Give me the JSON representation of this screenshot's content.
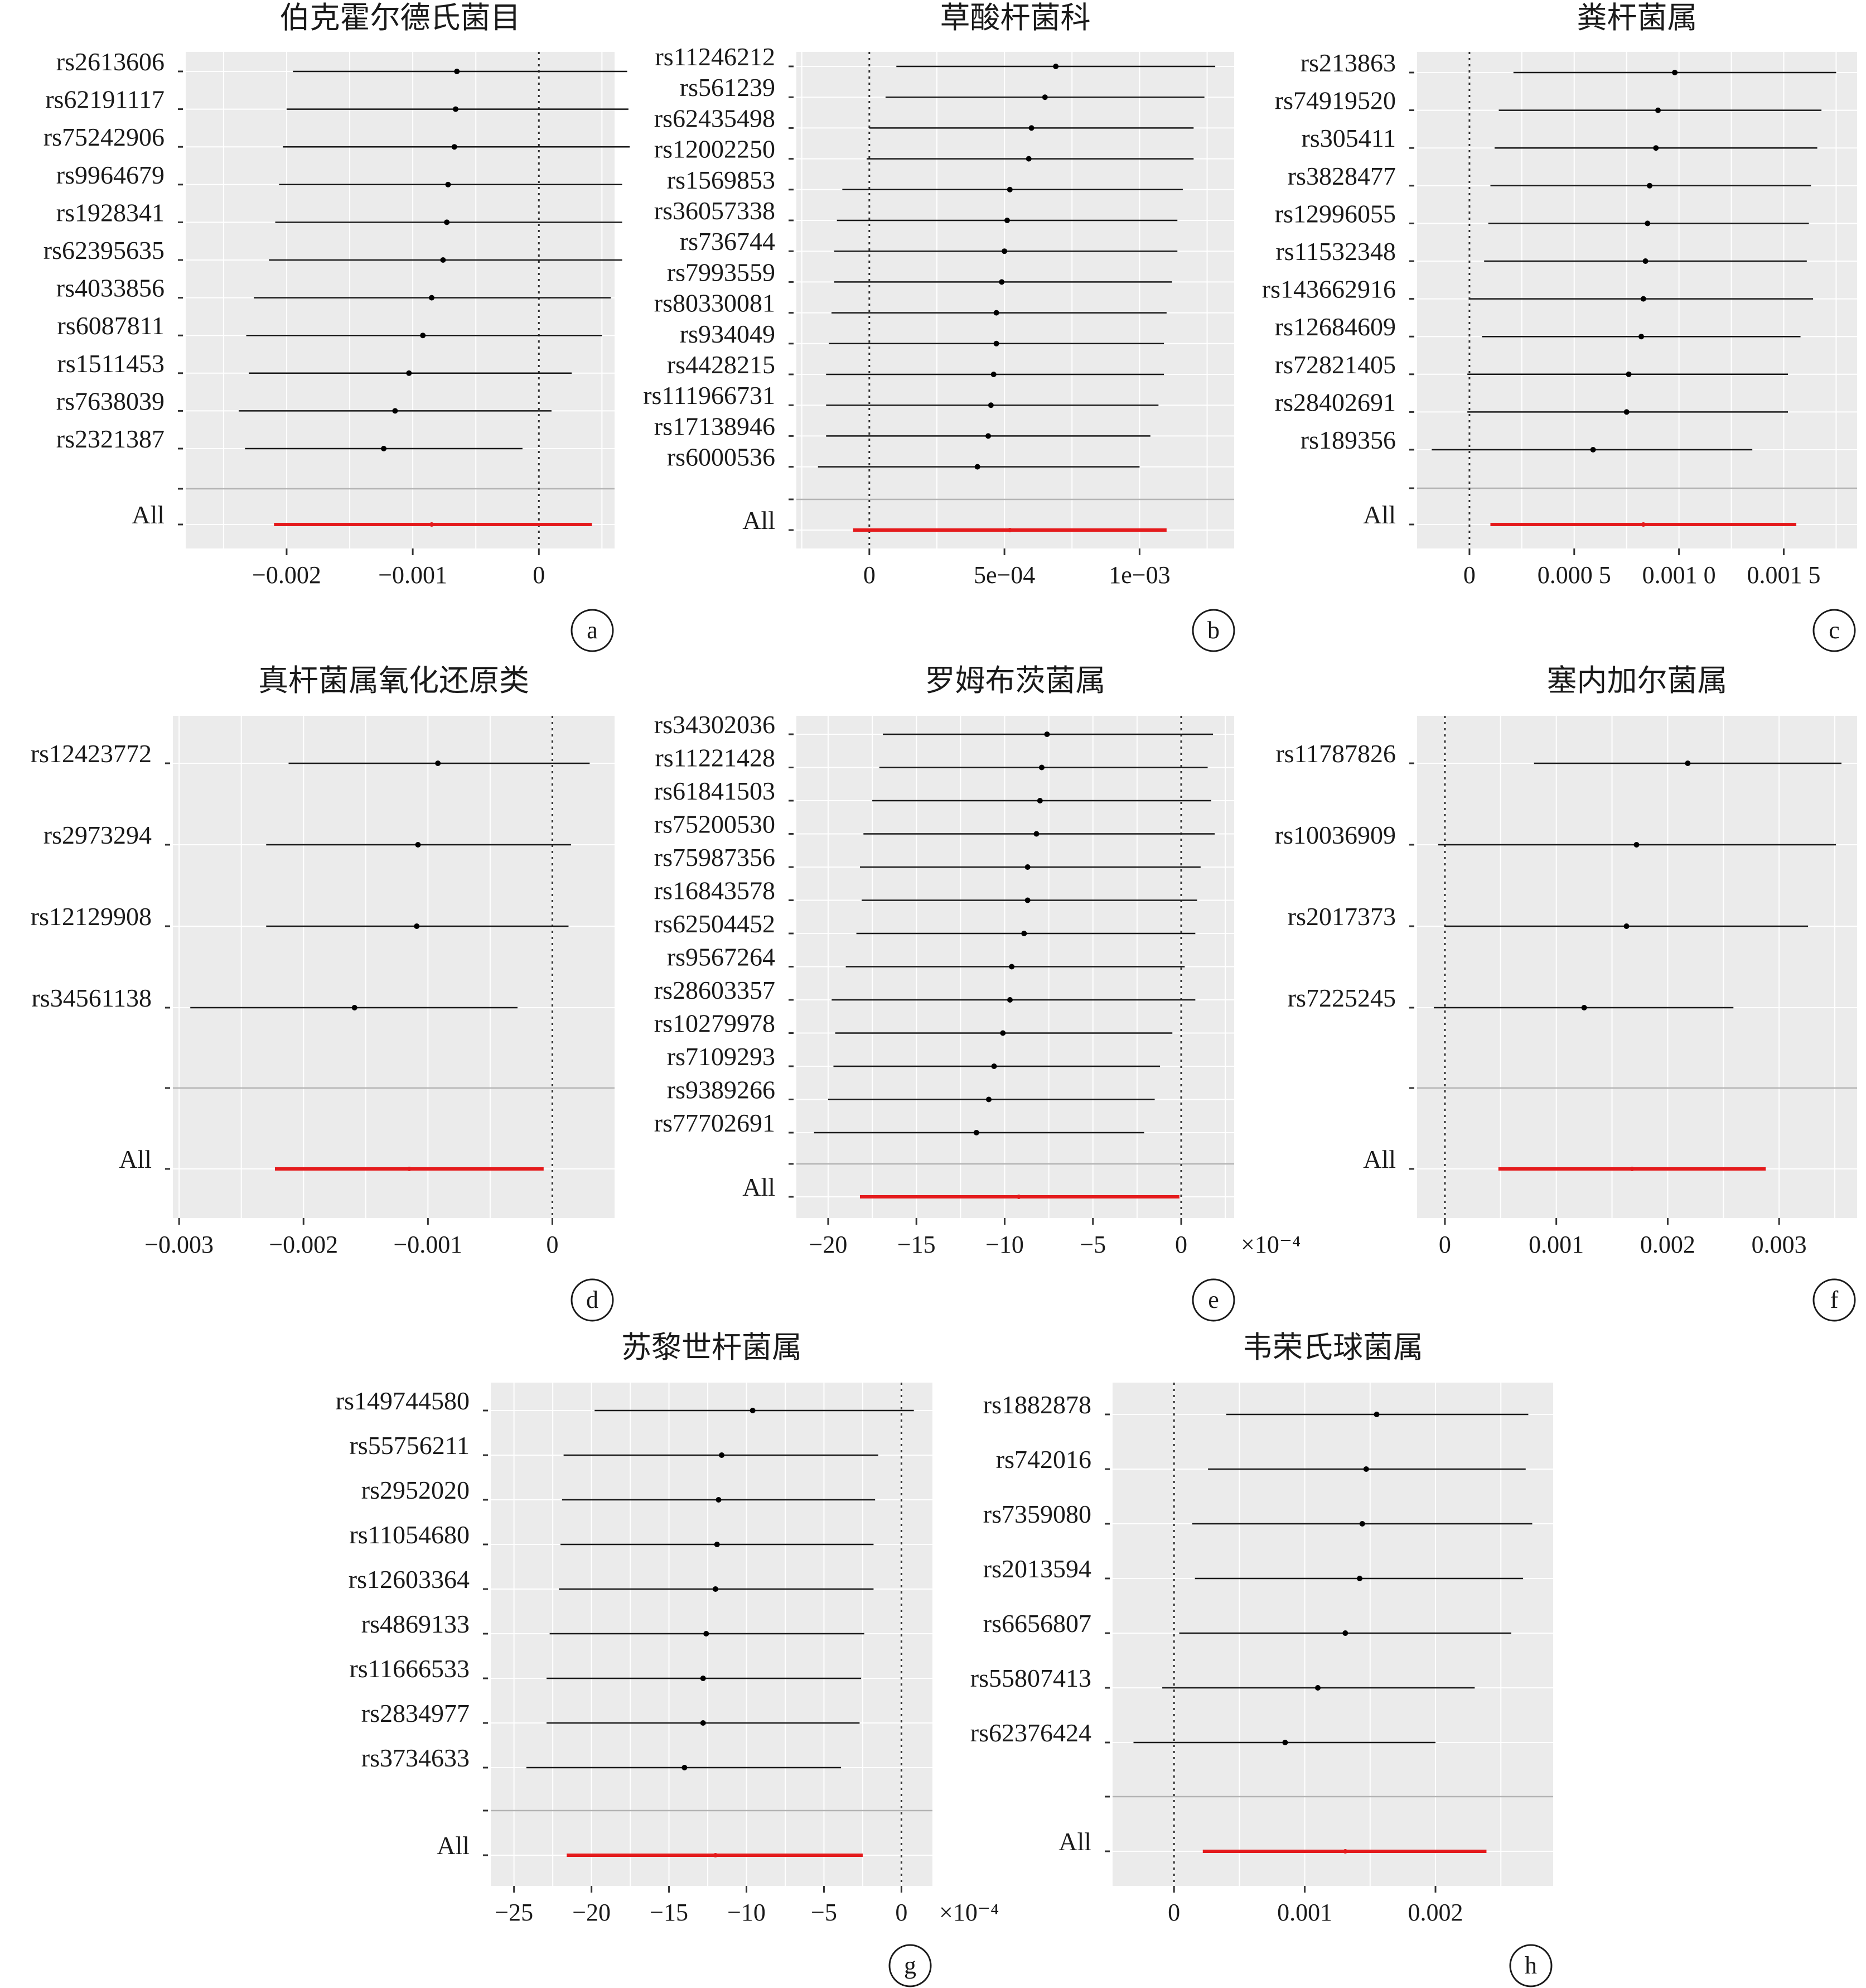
{
  "chart_data": [
    {
      "type": "forest",
      "panel": "a",
      "title": "伯克霍尔德氏菌目",
      "xlim": [
        -0.0028,
        0.0006
      ],
      "ticks": [
        {
          "v": -0.002,
          "label": "−0.002"
        },
        {
          "v": -0.001,
          "label": "−0.001"
        },
        {
          "v": 0,
          "label": "0"
        }
      ],
      "multiplier": "",
      "rows": [
        {
          "label": "rs2613606",
          "est": -0.00065,
          "lo": -0.00195,
          "hi": 0.0007
        },
        {
          "label": "rs62191117",
          "est": -0.00066,
          "lo": -0.002,
          "hi": 0.00071
        },
        {
          "label": "rs75242906",
          "est": -0.00067,
          "lo": -0.00203,
          "hi": 0.00072
        },
        {
          "label": "rs9964679",
          "est": -0.00072,
          "lo": -0.00206,
          "hi": 0.00066
        },
        {
          "label": "rs1928341",
          "est": -0.00073,
          "lo": -0.00209,
          "hi": 0.00066
        },
        {
          "label": "rs62395635",
          "est": -0.00076,
          "lo": -0.00214,
          "hi": 0.00066
        },
        {
          "label": "rs4033856",
          "est": -0.00085,
          "lo": -0.00226,
          "hi": 0.00057
        },
        {
          "label": "rs6087811",
          "est": -0.00092,
          "lo": -0.00232,
          "hi": 0.0005
        },
        {
          "label": "rs1511453",
          "est": -0.00103,
          "lo": -0.0023,
          "hi": 0.00026
        },
        {
          "label": "rs7638039",
          "est": -0.00114,
          "lo": -0.00238,
          "hi": 0.0001
        },
        {
          "label": "rs2321387",
          "est": -0.00123,
          "lo": -0.00233,
          "hi": -0.00013
        }
      ],
      "summary": {
        "label": "All",
        "est": -0.00085,
        "lo": -0.0021,
        "hi": 0.00042
      }
    },
    {
      "type": "forest",
      "panel": "b",
      "title": "草酸杆菌科",
      "xlim": [
        -0.00027,
        0.00135
      ],
      "ticks": [
        {
          "v": 0,
          "label": "0"
        },
        {
          "v": 0.0005,
          "label": "5e−04"
        },
        {
          "v": 0.001,
          "label": "1e−03"
        }
      ],
      "multiplier": "",
      "rows": [
        {
          "label": "rs11246212",
          "est": 0.00069,
          "lo": 0.0001,
          "hi": 0.00128
        },
        {
          "label": "rs561239",
          "est": 0.00065,
          "lo": 6e-05,
          "hi": 0.00124
        },
        {
          "label": "rs62435498",
          "est": 0.0006,
          "lo": 0.0,
          "hi": 0.0012
        },
        {
          "label": "rs12002250",
          "est": 0.00059,
          "lo": -1e-05,
          "hi": 0.0012
        },
        {
          "label": "rs1569853",
          "est": 0.00052,
          "lo": -0.0001,
          "hi": 0.00116
        },
        {
          "label": "rs36057338",
          "est": 0.00051,
          "lo": -0.00012,
          "hi": 0.00114
        },
        {
          "label": "rs736744",
          "est": 0.0005,
          "lo": -0.00013,
          "hi": 0.00114
        },
        {
          "label": "rs7993559",
          "est": 0.00049,
          "lo": -0.00013,
          "hi": 0.00112
        },
        {
          "label": "rs80330081",
          "est": 0.00047,
          "lo": -0.00014,
          "hi": 0.0011
        },
        {
          "label": "rs934049",
          "est": 0.00047,
          "lo": -0.00015,
          "hi": 0.00109
        },
        {
          "label": "rs4428215",
          "est": 0.00046,
          "lo": -0.00016,
          "hi": 0.00109
        },
        {
          "label": "rs111966731",
          "est": 0.00045,
          "lo": -0.00016,
          "hi": 0.00107
        },
        {
          "label": "rs17138946",
          "est": 0.00044,
          "lo": -0.00016,
          "hi": 0.00104
        },
        {
          "label": "rs6000536",
          "est": 0.0004,
          "lo": -0.00019,
          "hi": 0.001
        }
      ],
      "summary": {
        "label": "All",
        "est": 0.00052,
        "lo": -6e-05,
        "hi": 0.0011
      }
    },
    {
      "type": "forest",
      "panel": "c",
      "title": "粪杆菌属",
      "xlim": [
        -0.00025,
        0.00185
      ],
      "ticks": [
        {
          "v": 0,
          "label": "0"
        },
        {
          "v": 0.0005,
          "label": "0.000 5"
        },
        {
          "v": 0.001,
          "label": "0.001 0"
        },
        {
          "v": 0.0015,
          "label": "0.001 5"
        }
      ],
      "multiplier": "",
      "rows": [
        {
          "label": "rs213863",
          "est": 0.00098,
          "lo": 0.00021,
          "hi": 0.00175
        },
        {
          "label": "rs74919520",
          "est": 0.0009,
          "lo": 0.00014,
          "hi": 0.00168
        },
        {
          "label": "rs305411",
          "est": 0.00089,
          "lo": 0.00012,
          "hi": 0.00166
        },
        {
          "label": "rs3828477",
          "est": 0.00086,
          "lo": 0.0001,
          "hi": 0.00163
        },
        {
          "label": "rs12996055",
          "est": 0.00085,
          "lo": 9e-05,
          "hi": 0.00162
        },
        {
          "label": "rs11532348",
          "est": 0.00084,
          "lo": 7e-05,
          "hi": 0.00161
        },
        {
          "label": "rs143662916",
          "est": 0.00083,
          "lo": 0.0,
          "hi": 0.00164
        },
        {
          "label": "rs12684609",
          "est": 0.00082,
          "lo": 6e-05,
          "hi": 0.00158
        },
        {
          "label": "rs72821405",
          "est": 0.00076,
          "lo": -1e-05,
          "hi": 0.00152
        },
        {
          "label": "rs28402691",
          "est": 0.00075,
          "lo": -1e-05,
          "hi": 0.00152
        },
        {
          "label": "rs189356",
          "est": 0.00059,
          "lo": -0.00018,
          "hi": 0.00135
        }
      ],
      "summary": {
        "label": "All",
        "est": 0.00083,
        "lo": 0.0001,
        "hi": 0.00156
      }
    },
    {
      "type": "forest",
      "panel": "d",
      "title": "真杆菌属氧化还原类",
      "xlim": [
        -0.00305,
        0.0005
      ],
      "ticks": [
        {
          "v": -0.003,
          "label": "−0.003"
        },
        {
          "v": -0.002,
          "label": "−0.002"
        },
        {
          "v": -0.001,
          "label": "−0.001"
        },
        {
          "v": 0,
          "label": "0"
        }
      ],
      "multiplier": "",
      "rows": [
        {
          "label": "rs12423772",
          "est": -0.00092,
          "lo": -0.00212,
          "hi": 0.0003
        },
        {
          "label": "rs2973294",
          "est": -0.00108,
          "lo": -0.0023,
          "hi": 0.00015
        },
        {
          "label": "rs12129908",
          "est": -0.00109,
          "lo": -0.0023,
          "hi": 0.00013
        },
        {
          "label": "rs34561138",
          "est": -0.00159,
          "lo": -0.00291,
          "hi": -0.00028
        }
      ],
      "summary": {
        "label": "All",
        "est": -0.00115,
        "lo": -0.00223,
        "hi": -7e-05
      }
    },
    {
      "type": "forest",
      "panel": "e",
      "title": "罗姆布茨菌属",
      "xlim": [
        -21.8,
        3.0
      ],
      "ticks": [
        {
          "v": -20,
          "label": "−20"
        },
        {
          "v": -15,
          "label": "−15"
        },
        {
          "v": -10,
          "label": "−10"
        },
        {
          "v": -5,
          "label": "−5"
        },
        {
          "v": 0,
          "label": "0"
        }
      ],
      "multiplier": "×10⁻⁴",
      "rows": [
        {
          "label": "rs34302036",
          "est": -7.6,
          "lo": -16.9,
          "hi": 1.8
        },
        {
          "label": "rs11221428",
          "est": -7.9,
          "lo": -17.1,
          "hi": 1.5
        },
        {
          "label": "rs61841503",
          "est": -8.0,
          "lo": -17.5,
          "hi": 1.7
        },
        {
          "label": "rs75200530",
          "est": -8.2,
          "lo": -18.0,
          "hi": 1.9
        },
        {
          "label": "rs75987356",
          "est": -8.7,
          "lo": -18.2,
          "hi": 1.1
        },
        {
          "label": "rs16843578",
          "est": -8.7,
          "lo": -18.1,
          "hi": 0.9
        },
        {
          "label": "rs62504452",
          "est": -8.9,
          "lo": -18.4,
          "hi": 0.8
        },
        {
          "label": "rs9567264",
          "est": -9.6,
          "lo": -19.0,
          "hi": 0.2
        },
        {
          "label": "rs28603357",
          "est": -9.7,
          "lo": -19.8,
          "hi": 0.8
        },
        {
          "label": "rs10279978",
          "est": -10.1,
          "lo": -19.6,
          "hi": -0.5
        },
        {
          "label": "rs7109293",
          "est": -10.6,
          "lo": -19.7,
          "hi": -1.2
        },
        {
          "label": "rs9389266",
          "est": -10.9,
          "lo": -20.0,
          "hi": -1.5
        },
        {
          "label": "rs77702691",
          "est": -11.6,
          "lo": -20.8,
          "hi": -2.1
        }
      ],
      "summary": {
        "label": "All",
        "est": -9.2,
        "lo": -18.2,
        "hi": -0.1
      }
    },
    {
      "type": "forest",
      "panel": "f",
      "title": "塞内加尔菌属",
      "xlim": [
        -0.00025,
        0.0037
      ],
      "ticks": [
        {
          "v": 0,
          "label": "0"
        },
        {
          "v": 0.001,
          "label": "0.001"
        },
        {
          "v": 0.002,
          "label": "0.002"
        },
        {
          "v": 0.003,
          "label": "0.003"
        }
      ],
      "multiplier": "",
      "rows": [
        {
          "label": "rs11787826",
          "est": 0.00218,
          "lo": 0.0008,
          "hi": 0.00356
        },
        {
          "label": "rs10036909",
          "est": 0.00172,
          "lo": -6e-05,
          "hi": 0.00351
        },
        {
          "label": "rs2017373",
          "est": 0.00163,
          "lo": 0.0,
          "hi": 0.00326
        },
        {
          "label": "rs7225245",
          "est": 0.00125,
          "lo": -0.0001,
          "hi": 0.00259
        }
      ],
      "summary": {
        "label": "All",
        "est": 0.00168,
        "lo": 0.00048,
        "hi": 0.00288
      }
    },
    {
      "type": "forest",
      "panel": "g",
      "title": "苏黎世杆菌属",
      "xlim": [
        -26.5,
        2.0
      ],
      "ticks": [
        {
          "v": -25,
          "label": "−25"
        },
        {
          "v": -20,
          "label": "−20"
        },
        {
          "v": -15,
          "label": "−15"
        },
        {
          "v": -10,
          "label": "−10"
        },
        {
          "v": -5,
          "label": "−5"
        },
        {
          "v": 0,
          "label": "0"
        }
      ],
      "multiplier": "×10⁻⁴",
      "rows": [
        {
          "label": "rs149744580",
          "est": -9.6,
          "lo": -19.8,
          "hi": 0.8
        },
        {
          "label": "rs55756211",
          "est": -11.6,
          "lo": -21.8,
          "hi": -1.5
        },
        {
          "label": "rs2952020",
          "est": -11.8,
          "lo": -21.9,
          "hi": -1.7
        },
        {
          "label": "rs11054680",
          "est": -11.9,
          "lo": -22.0,
          "hi": -1.8
        },
        {
          "label": "rs12603364",
          "est": -12.0,
          "lo": -22.1,
          "hi": -1.8
        },
        {
          "label": "rs4869133",
          "est": -12.6,
          "lo": -22.7,
          "hi": -2.4
        },
        {
          "label": "rs11666533",
          "est": -12.8,
          "lo": -22.9,
          "hi": -2.6
        },
        {
          "label": "rs2834977",
          "est": -12.8,
          "lo": -22.9,
          "hi": -2.7
        },
        {
          "label": "rs3734633",
          "est": -14.0,
          "lo": -24.2,
          "hi": -3.9
        }
      ],
      "summary": {
        "label": "All",
        "est": -12.0,
        "lo": -21.6,
        "hi": -2.5
      }
    },
    {
      "type": "forest",
      "panel": "h",
      "title": "韦荣氏球菌属",
      "xlim": [
        -0.00047,
        0.0029
      ],
      "ticks": [
        {
          "v": 0,
          "label": "0"
        },
        {
          "v": 0.001,
          "label": "0.001"
        },
        {
          "v": 0.002,
          "label": "0.002"
        }
      ],
      "multiplier": "",
      "rows": [
        {
          "label": "rs1882878",
          "est": 0.00155,
          "lo": 0.0004,
          "hi": 0.00271
        },
        {
          "label": "rs742016",
          "est": 0.00147,
          "lo": 0.00026,
          "hi": 0.00269
        },
        {
          "label": "rs7359080",
          "est": 0.00144,
          "lo": 0.00014,
          "hi": 0.00274
        },
        {
          "label": "rs2013594",
          "est": 0.00142,
          "lo": 0.00016,
          "hi": 0.00267
        },
        {
          "label": "rs6656807",
          "est": 0.00131,
          "lo": 4e-05,
          "hi": 0.00258
        },
        {
          "label": "rs55807413",
          "est": 0.0011,
          "lo": -9e-05,
          "hi": 0.0023
        },
        {
          "label": "rs62376424",
          "est": 0.00085,
          "lo": -0.00031,
          "hi": 0.002
        }
      ],
      "summary": {
        "label": "All",
        "est": 0.00131,
        "lo": 0.00022,
        "hi": 0.00239
      }
    }
  ],
  "colors": {
    "panel_bg": "#ebebeb",
    "grid": "#ffffff",
    "ci_line": "#1a1a1a",
    "summary_line": "#e41a1c",
    "separator": "#b3b3b3",
    "zero_line": "#333333"
  }
}
